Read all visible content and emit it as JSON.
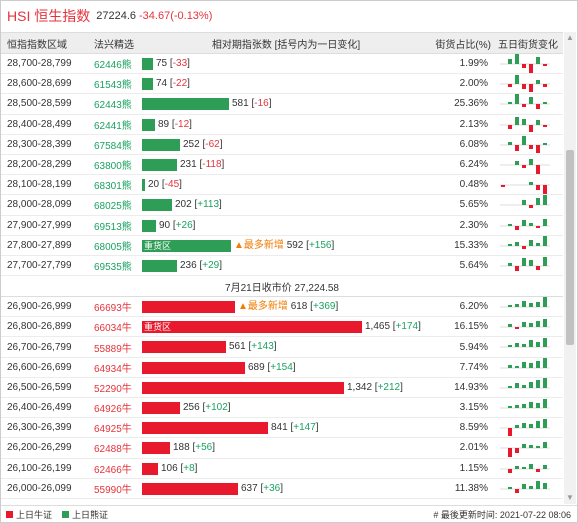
{
  "header": {
    "index_name": "HSI 恒生指数",
    "price": "27224.6",
    "change": "-34.67(-0.13%)"
  },
  "columns": {
    "range": "恒指指数区域",
    "code": "法兴精选",
    "ratio": "相对期指张数 [括号内为一日变化]",
    "pct": "街货占比(%)",
    "five_day": "五日街货变化"
  },
  "colors": {
    "bear": "#2e9d55",
    "bull": "#e8192c",
    "accent": "#e5333b"
  },
  "tags": {
    "heavy": "重货区",
    "newest": "▲最多新增"
  },
  "max_value": 1465,
  "bear_rows": [
    {
      "range": "28,700-28,799",
      "code": "62446熊",
      "value": 75,
      "display": "75",
      "change": "-33",
      "pct": "1.99%",
      "mini": [
        0,
        5,
        12,
        -4,
        -9,
        7,
        -2
      ]
    },
    {
      "range": "28,600-28,699",
      "code": "61543熊",
      "value": 74,
      "display": "74",
      "change": "-22",
      "pct": "2.00%",
      "mini": [
        0,
        -3,
        9,
        -5,
        -8,
        4,
        -3
      ]
    },
    {
      "range": "28,500-28,599",
      "code": "62443熊",
      "value": 581,
      "display": "581",
      "change": "-16",
      "pct": "25.36%",
      "mini": [
        0,
        2,
        10,
        -3,
        7,
        -5,
        2
      ]
    },
    {
      "range": "28,400-28,499",
      "code": "62441熊",
      "value": 89,
      "display": "89",
      "change": "-12",
      "pct": "2.13%",
      "mini": [
        0,
        -4,
        8,
        6,
        -7,
        5,
        -2
      ]
    },
    {
      "range": "28,300-28,399",
      "code": "67584熊",
      "value": 252,
      "display": "252",
      "change": "-62",
      "pct": "6.08%",
      "mini": [
        0,
        3,
        -6,
        9,
        -4,
        -8,
        2
      ]
    },
    {
      "range": "28,200-28,299",
      "code": "63800熊",
      "value": 231,
      "display": "231",
      "change": "-118",
      "pct": "6.24%",
      "mini": [
        0,
        0,
        4,
        -3,
        6,
        -9,
        0
      ]
    },
    {
      "range": "28,100-28,199",
      "code": "68301熊",
      "value": 20,
      "display": "20",
      "change": "-45",
      "pct": "0.48%",
      "mini": [
        -2,
        0,
        0,
        0,
        3,
        -5,
        -9
      ]
    },
    {
      "range": "28,000-28,099",
      "code": "68025熊",
      "value": 202,
      "display": "202",
      "change": "+113",
      "pct": "5.65%",
      "mini": [
        0,
        0,
        0,
        5,
        -3,
        7,
        10
      ]
    },
    {
      "range": "27,900-27,999",
      "code": "69513熊",
      "value": 90,
      "display": "90",
      "change": "+26",
      "pct": "2.30%",
      "mini": [
        0,
        2,
        -4,
        6,
        3,
        -2,
        7
      ]
    },
    {
      "range": "27,800-27,899",
      "code": "68005熊",
      "value": 592,
      "display": "592",
      "change": "+156",
      "pct": "15.33%",
      "tag": "heavy",
      "newest": true,
      "mini": [
        0,
        2,
        4,
        -3,
        6,
        3,
        10
      ]
    },
    {
      "range": "27,700-27,799",
      "code": "69535熊",
      "value": 236,
      "display": "236",
      "change": "+29",
      "pct": "5.64%",
      "mini": [
        0,
        3,
        -5,
        8,
        6,
        -4,
        9
      ]
    }
  ],
  "mid_label": "7月21日收市价 27,224.58",
  "bull_rows": [
    {
      "range": "26,900-26,999",
      "code": "66693牛",
      "value": 618,
      "display": "618",
      "change": "+369",
      "pct": "6.20%",
      "newest": true,
      "mini": [
        0,
        2,
        3,
        6,
        4,
        5,
        10
      ]
    },
    {
      "range": "26,800-26,899",
      "code": "66034牛",
      "value": 1465,
      "display": "1,465",
      "change": "+174",
      "pct": "16.15%",
      "tag": "heavy",
      "mini": [
        0,
        3,
        -2,
        5,
        4,
        6,
        8
      ]
    },
    {
      "range": "26,700-26,799",
      "code": "55889牛",
      "value": 561,
      "display": "561",
      "change": "+143",
      "pct": "5.94%",
      "mini": [
        0,
        2,
        4,
        3,
        7,
        5,
        9
      ]
    },
    {
      "range": "26,600-26,699",
      "code": "64934牛",
      "value": 689,
      "display": "689",
      "change": "+154",
      "pct": "7.74%",
      "mini": [
        0,
        3,
        2,
        6,
        5,
        7,
        10
      ]
    },
    {
      "range": "26,500-26,599",
      "code": "52290牛",
      "value": 1342,
      "display": "1,342",
      "change": "+212",
      "pct": "14.93%",
      "mini": [
        0,
        2,
        5,
        3,
        6,
        8,
        10
      ]
    },
    {
      "range": "26,400-26,499",
      "code": "64926牛",
      "value": 256,
      "display": "256",
      "change": "+102",
      "pct": "3.15%",
      "mini": [
        0,
        2,
        3,
        4,
        6,
        5,
        9
      ]
    },
    {
      "range": "26,300-26,399",
      "code": "64925牛",
      "value": 841,
      "display": "841",
      "change": "+147",
      "pct": "8.59%",
      "mini": [
        0,
        -8,
        3,
        5,
        4,
        7,
        9
      ]
    },
    {
      "range": "26,200-26,299",
      "code": "62488牛",
      "value": 188,
      "display": "188",
      "change": "+56",
      "pct": "2.01%",
      "mini": [
        0,
        -9,
        -5,
        4,
        3,
        2,
        6
      ]
    },
    {
      "range": "26,100-26,199",
      "code": "62466牛",
      "value": 106,
      "display": "106",
      "change": "+8",
      "pct": "1.15%",
      "mini": [
        0,
        -4,
        3,
        2,
        5,
        -3,
        4
      ]
    },
    {
      "range": "26,000-26,099",
      "code": "55990牛",
      "value": 637,
      "display": "637",
      "change": "+36",
      "pct": "11.38%",
      "mini": [
        0,
        2,
        -4,
        5,
        3,
        8,
        6
      ]
    }
  ],
  "footer": {
    "bull_legend": "上日牛证",
    "bear_legend": "上日熊证",
    "update_label": "# 最後更新时间: 2021-07-22 08:06"
  }
}
